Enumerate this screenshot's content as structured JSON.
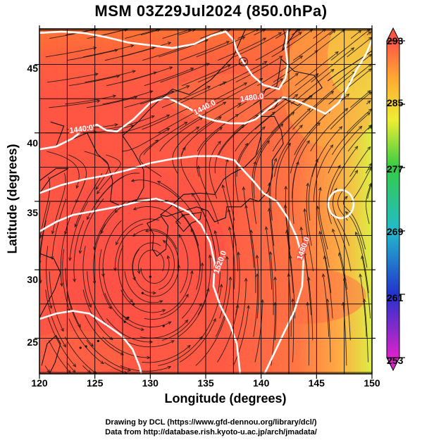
{
  "title": "MSM 03Z29Jul2024 (850.0hPa)",
  "x_axis": {
    "label": "Longitude (degrees)",
    "ticks": [
      {
        "value": 120,
        "label": "120"
      },
      {
        "value": 125,
        "label": "125"
      },
      {
        "value": 130,
        "label": "130"
      },
      {
        "value": 135,
        "label": "135"
      },
      {
        "value": 140,
        "label": "140"
      },
      {
        "value": 145,
        "label": "145"
      },
      {
        "value": 150,
        "label": "150"
      }
    ],
    "range": [
      120,
      150
    ]
  },
  "y_axis": {
    "label": "Latitude  (degrees)",
    "ticks": [
      {
        "value": 25,
        "label": "25"
      },
      {
        "value": 30,
        "label": "30"
      },
      {
        "value": 35,
        "label": "35"
      },
      {
        "value": 40,
        "label": "40"
      },
      {
        "value": 45,
        "label": "45"
      }
    ],
    "range": [
      22.4,
      47.6
    ]
  },
  "colorbar": {
    "ticks": [
      {
        "value": 293,
        "label": "293"
      },
      {
        "value": 285,
        "label": "285"
      },
      {
        "value": 277,
        "label": "277"
      },
      {
        "value": 269,
        "label": "269"
      },
      {
        "value": 261,
        "label": "261"
      },
      {
        "value": 253,
        "label": "253"
      }
    ],
    "range": [
      253,
      293
    ],
    "colors": [
      "#cc33aa",
      "#3344cc",
      "#22aacc",
      "#33cc55",
      "#ffff44",
      "#ffaa33",
      "#ff6644"
    ]
  },
  "contour_labels": [
    {
      "text": "1440.0"
    },
    {
      "text": "1440.0"
    },
    {
      "text": "1480.0"
    },
    {
      "text": "1520.0"
    },
    {
      "text": "1480.0"
    }
  ],
  "credits": {
    "line1": "Drawing by DCL (https://www.gfd-dennou.org/library/dcl/)",
    "line2": "Data from http://database.rish.kyoto-u.ac.jp/arch/jmadata/"
  }
}
